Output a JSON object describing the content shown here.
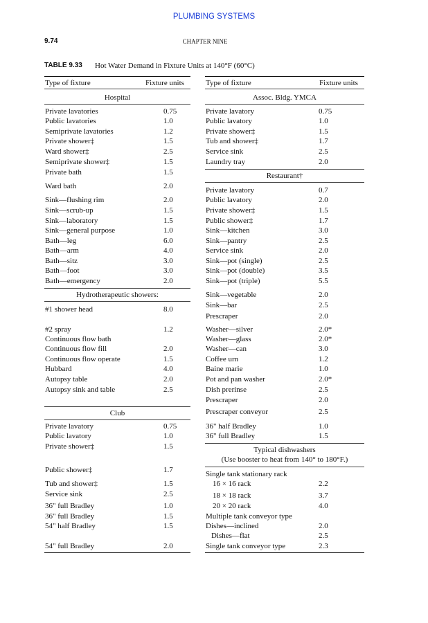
{
  "header": {
    "running_title": "PLUMBING SYSTEMS",
    "page_number": "9.74",
    "chapter": "CHAPTER NINE"
  },
  "table": {
    "label": "TABLE 9.33",
    "caption": "Hot Water Demand in Fixture Units at 140°F (60°C)",
    "left": {
      "headers": [
        "Type of fixture",
        "Fixture units"
      ],
      "items": [
        {
          "heading": "Hospital"
        },
        {
          "label": "Private lavatories",
          "units": "0.75"
        },
        {
          "label": "Public lavatories",
          "units": "1.0"
        },
        {
          "label": "Semiprivate lavatories",
          "units": "1.2"
        },
        {
          "label": "Private shower‡",
          "units": "1.5"
        },
        {
          "label": "Ward shower‡",
          "units": "2.5"
        },
        {
          "label": "Semiprivate shower‡",
          "units": "1.5"
        },
        {
          "label": "Private bath",
          "units": "1.5"
        },
        {
          "label": "Ward bath",
          "units": "2.0"
        },
        {
          "label": "Sink—flushing rim",
          "units": "2.0"
        },
        {
          "label": "Sink—scrub-up",
          "units": "1.5"
        },
        {
          "label": "Sink—laboratory",
          "units": "1.5"
        },
        {
          "label": "Sink—general purpose",
          "units": "1.0"
        },
        {
          "label": "Bath—leg",
          "units": "6.0"
        },
        {
          "label": "Bath—arm",
          "units": "4.0"
        },
        {
          "label": "Bath—sitz",
          "units": "3.0"
        },
        {
          "label": "Bath—foot",
          "units": "3.0"
        },
        {
          "label": "Bath—emergency",
          "units": "2.0"
        },
        {
          "heading": "Hydrotherapeutic showers:"
        },
        {
          "label": "#1 shower head",
          "units": "8.0"
        },
        {
          "label": "#2 spray",
          "units": "1.2"
        },
        {
          "label": "Continuous flow bath"
        },
        {
          "label": "Continuous flow fill",
          "units": "2.0"
        },
        {
          "label": "Continuous flow operate",
          "units": "1.5"
        },
        {
          "label": "Hubbard",
          "units": "4.0"
        },
        {
          "label": "Autopsy table",
          "units": "2.0"
        },
        {
          "label": "Autopsy sink and table",
          "units": "2.5"
        },
        {
          "heading": "Club"
        },
        {
          "label": "Private lavatory",
          "units": "0.75"
        },
        {
          "label": "Public lavatory",
          "units": "1.0"
        },
        {
          "label": "Private shower‡",
          "units": "1.5"
        },
        {
          "label": "Public shower‡",
          "units": "1.7"
        },
        {
          "label": "Tub and shower‡",
          "units": "1.5"
        },
        {
          "label": "Service sink",
          "units": "2.5"
        },
        {
          "label": "36\" full Bradley",
          "units": "1.0"
        },
        {
          "label": "36\" full Bradley",
          "units": "1.5"
        },
        {
          "label": "54\" half Bradley",
          "units": "1.5"
        },
        {
          "label": "54\" full Bradley",
          "units": "2.0"
        }
      ]
    },
    "right": {
      "headers": [
        "Type of fixture",
        "Fixture units"
      ],
      "items": [
        {
          "heading": "Assoc. Bldg. YMCA"
        },
        {
          "label": "Private lavatory",
          "units": "0.75"
        },
        {
          "label": "Public lavatory",
          "units": "1.0"
        },
        {
          "label": "Private shower‡",
          "units": "1.5"
        },
        {
          "label": "Tub and shower‡",
          "units": "1.7"
        },
        {
          "label": "Service sink",
          "units": "2.5"
        },
        {
          "label": "Laundry tray",
          "units": "2.0"
        },
        {
          "heading": "Restaurant†"
        },
        {
          "label": "Private lavatory",
          "units": "0.7"
        },
        {
          "label": "Public lavatory",
          "units": "2.0"
        },
        {
          "label": "Private shower‡",
          "units": "1.5"
        },
        {
          "label": "Public shower‡",
          "units": "1.7"
        },
        {
          "label": "Sink—kitchen",
          "units": "3.0"
        },
        {
          "label": "Sink—pantry",
          "units": "2.5"
        },
        {
          "label": "Service sink",
          "units": "2.0"
        },
        {
          "label": "Sink—pot (single)",
          "units": "2.5"
        },
        {
          "label": "Sink—pot (double)",
          "units": "3.5"
        },
        {
          "label": "Sink—pot (triple)",
          "units": "5.5"
        },
        {
          "label": "Sink—vegetable",
          "units": "2.0"
        },
        {
          "label": "Sink—bar",
          "units": "2.5"
        },
        {
          "label": "Prescraper",
          "units": "2.0"
        },
        {
          "label": "Washer—silver",
          "units": "2.0*"
        },
        {
          "label": "Washer—glass",
          "units": "2.0*"
        },
        {
          "label": "Washer—can",
          "units": "3.0"
        },
        {
          "label": "Coffee urn",
          "units": "1.2"
        },
        {
          "label": "Baine marie",
          "units": "1.0"
        },
        {
          "label": "Pot and pan washer",
          "units": "2.0*"
        },
        {
          "label": "Dish prerinse",
          "units": "2.5"
        },
        {
          "label": "Prescraper",
          "units": "2.0"
        },
        {
          "label": "Prescraper conveyor",
          "units": "2.5"
        },
        {
          "label": "36\" half Bradley",
          "units": "1.0"
        },
        {
          "label": "36\" full Bradley",
          "units": "1.5"
        },
        {
          "heading": "Typical dishwashers",
          "note": "(Use booster to heat from 140° to 180°F.)"
        },
        {
          "label": "Single tank stationary rack"
        },
        {
          "label": "16 × 16 rack",
          "units": "2.2"
        },
        {
          "label": "18 × 18 rack",
          "units": "3.7"
        },
        {
          "label": "20 × 20 rack",
          "units": "4.0"
        },
        {
          "label": "Multiple tank conveyor type"
        },
        {
          "label": "Dishes—inclined",
          "units": "2.0"
        },
        {
          "label": "Dishes—flat",
          "units": "2.5"
        },
        {
          "label": "Single tank conveyor type",
          "units": "2.3"
        }
      ]
    }
  }
}
